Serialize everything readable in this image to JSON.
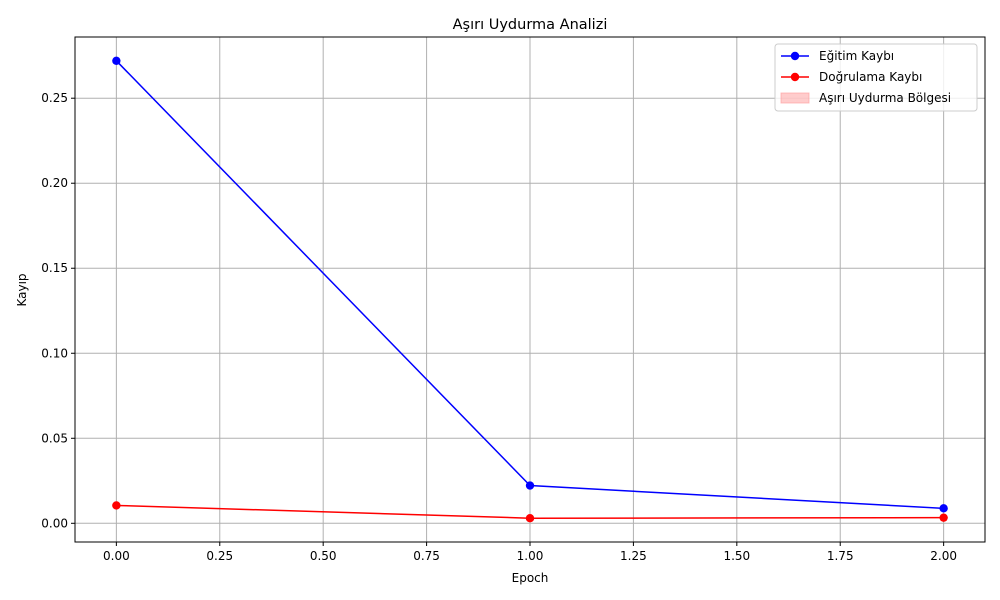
{
  "chart_data": {
    "type": "line",
    "title": "Aşırı Uydurma Analizi",
    "xlabel": "Epoch",
    "ylabel": "Kayıp",
    "xlim": [
      -0.1,
      2.1
    ],
    "ylim": [
      -0.011,
      0.286
    ],
    "xticks": [
      0.0,
      0.25,
      0.5,
      0.75,
      1.0,
      1.25,
      1.5,
      1.75,
      2.0
    ],
    "xtick_labels": [
      "0.00",
      "0.25",
      "0.50",
      "0.75",
      "1.00",
      "1.25",
      "1.50",
      "1.75",
      "2.00"
    ],
    "yticks": [
      0.0,
      0.05,
      0.1,
      0.15,
      0.2,
      0.25
    ],
    "ytick_labels": [
      "0.00",
      "0.05",
      "0.10",
      "0.15",
      "0.20",
      "0.25"
    ],
    "grid": true,
    "legend_position": "top-right",
    "series": [
      {
        "name": "Eğitim Kaybı",
        "color": "#0000ff",
        "marker": "circle",
        "x": [
          0,
          1,
          2
        ],
        "y": [
          0.272,
          0.0222,
          0.0088
        ]
      },
      {
        "name": "Doğrulama Kaybı",
        "color": "#ff0000",
        "marker": "circle",
        "x": [
          0,
          1,
          2
        ],
        "y": [
          0.0105,
          0.003,
          0.0033
        ]
      }
    ],
    "regions": [
      {
        "name": "Aşırı Uydurma Bölgesi",
        "color": "#ff9999",
        "opacity": 0.5,
        "x": [],
        "y_low": [],
        "y_high": []
      }
    ]
  }
}
